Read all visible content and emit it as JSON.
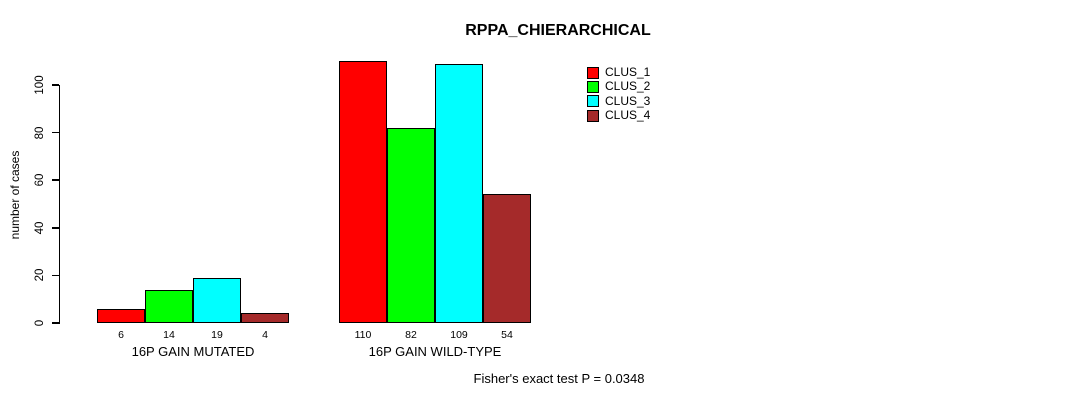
{
  "page": {
    "background_color": "#ffffff",
    "text_color": "#000000"
  },
  "chart_data": {
    "type": "bar",
    "title": "RPPA_CHIERARCHICAL",
    "xlabel": "",
    "ylabel": "number of cases",
    "ylim": [
      0,
      100
    ],
    "yticks": [
      0,
      20,
      40,
      60,
      80,
      100
    ],
    "grid": false,
    "legend_position": "top-right",
    "bar_value_labels_shown": true,
    "categories": [
      "16P GAIN MUTATED",
      "16P GAIN WILD-TYPE"
    ],
    "series": [
      {
        "name": "CLUS_1",
        "color": "#ff0000",
        "values": [
          6,
          110
        ]
      },
      {
        "name": "CLUS_2",
        "color": "#00ff00",
        "values": [
          14,
          82
        ]
      },
      {
        "name": "CLUS_3",
        "color": "#00ffff",
        "values": [
          19,
          109
        ]
      },
      {
        "name": "CLUS_4",
        "color": "#a52a2a",
        "values": [
          4,
          54
        ]
      }
    ],
    "annotation": "Fisher's exact test P = 0.0348"
  }
}
